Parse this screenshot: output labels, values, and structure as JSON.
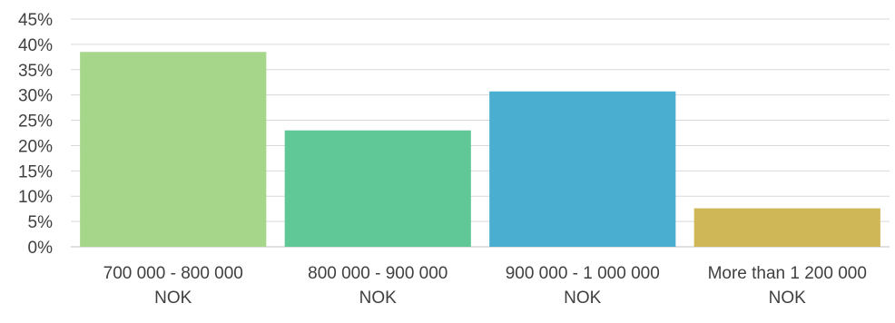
{
  "chart_data": {
    "type": "bar",
    "title": "",
    "xlabel": "",
    "ylabel": "",
    "categories": [
      [
        "700 000 - 800 000",
        "NOK"
      ],
      [
        "800 000 - 900 000",
        "NOK"
      ],
      [
        "900 000 - 1 000 000",
        "NOK"
      ],
      [
        "More than 1 200 000",
        "NOK"
      ]
    ],
    "values": [
      38.5,
      23.0,
      30.7,
      7.6
    ],
    "value_format": "percent",
    "ylim": [
      0,
      45
    ],
    "yticks": [
      "0%",
      "5%",
      "10%",
      "15%",
      "20%",
      "25%",
      "30%",
      "35%",
      "40%",
      "45%"
    ],
    "grid": true,
    "legend": "none",
    "bar_colors": [
      "#a6d68a",
      "#5fc896",
      "#4aaed0",
      "#cfb656"
    ],
    "gridline_color": "#d9d9d9"
  }
}
